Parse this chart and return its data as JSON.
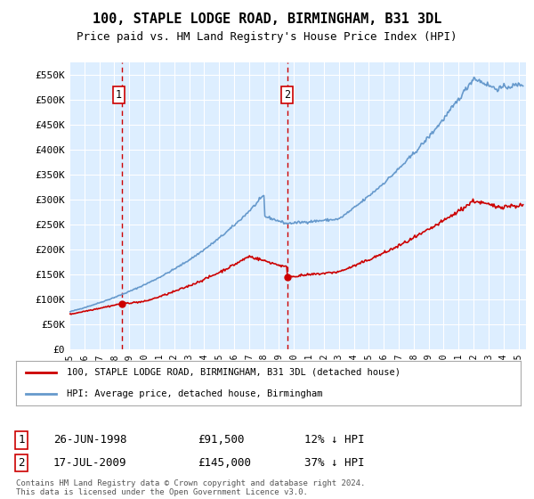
{
  "title": "100, STAPLE LODGE ROAD, BIRMINGHAM, B31 3DL",
  "subtitle": "Price paid vs. HM Land Registry's House Price Index (HPI)",
  "legend_line1": "100, STAPLE LODGE ROAD, BIRMINGHAM, B31 3DL (detached house)",
  "legend_line2": "HPI: Average price, detached house, Birmingham",
  "annotation1_label": "1",
  "annotation1_date": "26-JUN-1998",
  "annotation1_price": "£91,500",
  "annotation1_hpi": "12% ↓ HPI",
  "annotation2_label": "2",
  "annotation2_date": "17-JUL-2009",
  "annotation2_price": "£145,000",
  "annotation2_hpi": "37% ↓ HPI",
  "copyright": "Contains HM Land Registry data © Crown copyright and database right 2024.\nThis data is licensed under the Open Government Licence v3.0.",
  "plot_bg": "#ddeeff",
  "fig_bg": "#ffffff",
  "red_line_color": "#cc0000",
  "blue_line_color": "#6699cc",
  "vline_color": "#cc0000",
  "grid_color": "#ffffff",
  "ylim": [
    0,
    575000
  ],
  "yticks": [
    0,
    50000,
    100000,
    150000,
    200000,
    250000,
    300000,
    350000,
    400000,
    450000,
    500000,
    550000
  ],
  "sale1_x": 1998.49,
  "sale1_y": 91500,
  "sale2_x": 2009.54,
  "sale2_y": 145000,
  "xmin": 1995,
  "xmax": 2025.5
}
